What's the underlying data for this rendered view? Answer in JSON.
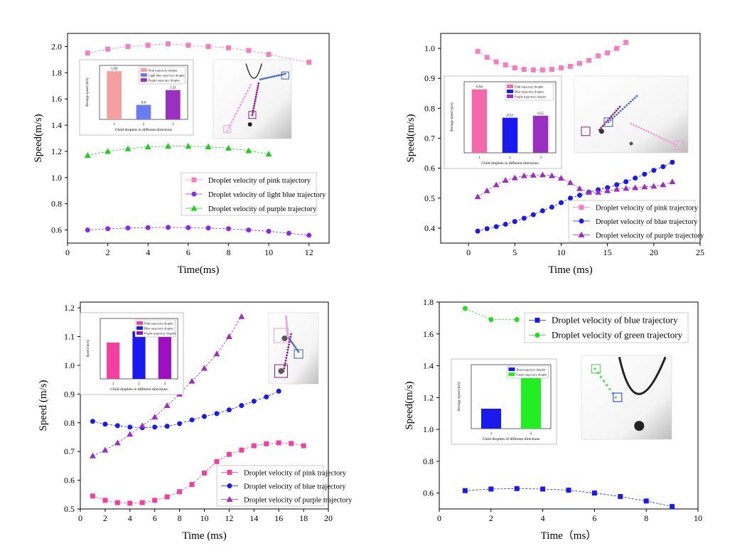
{
  "chart_data": [
    {
      "type": "scatter",
      "xlabel": "Time(ms)",
      "ylabel": "Speed(m/s)",
      "xlim": [
        0,
        13
      ],
      "ylim": [
        0.5,
        2.1
      ],
      "xticks": [
        "0",
        "2",
        "4",
        "6",
        "8",
        "10",
        "12"
      ],
      "yticks": [
        "0.6",
        "0.8",
        "1.0",
        "1.2",
        "1.4",
        "1.6",
        "1.8",
        "2.0"
      ],
      "legend_position": "middle-right",
      "series": [
        {
          "name": "Droplet velocity of pink trajectory",
          "color": "#f080c0",
          "marker": "square",
          "x": [
            1,
            2,
            3,
            4,
            5,
            6,
            7,
            8,
            9,
            10,
            12
          ],
          "y": [
            1.95,
            1.98,
            2.0,
            2.01,
            2.02,
            2.01,
            2.0,
            1.99,
            1.97,
            1.94,
            1.88
          ]
        },
        {
          "name": "Droplet velocity of light blue trajectory",
          "color": "#8a2be2",
          "marker": "circle",
          "x": [
            1,
            2,
            3,
            4,
            5,
            6,
            7,
            8,
            9,
            10,
            11,
            12
          ],
          "y": [
            0.6,
            0.61,
            0.615,
            0.618,
            0.62,
            0.618,
            0.615,
            0.61,
            0.6,
            0.59,
            0.575,
            0.56
          ]
        },
        {
          "name": "Droplet velocity of purple trajectory",
          "color": "#22cc22",
          "marker": "triangle",
          "x": [
            1,
            2,
            3,
            4,
            5,
            6,
            7,
            8,
            9,
            10
          ],
          "y": [
            1.17,
            1.2,
            1.22,
            1.235,
            1.24,
            1.24,
            1.235,
            1.225,
            1.205,
            1.18
          ]
        }
      ],
      "inset": {
        "type": "bar",
        "xlabel": "Child droplets in different directions",
        "ylabel": "Average speed (m/s)",
        "categories": [
          "1",
          "2",
          "3"
        ],
        "values": [
          1.99,
          0.6,
          1.21
        ],
        "value_labels": [
          "1.99",
          "0.6",
          "1.21"
        ],
        "colors": [
          "#f4a0a0",
          "#6a7cf0",
          "#9b30c0"
        ],
        "legend": [
          "Pink trajectory droplet",
          "Light blue trajectory droplet",
          "Purple trajectory droplet"
        ]
      }
    },
    {
      "type": "scatter",
      "xlabel": "Time (ms)",
      "ylabel": "Speed(m/s)",
      "xlim": [
        -3,
        25
      ],
      "ylim": [
        0.35,
        1.05
      ],
      "xticks": [
        "0",
        "5",
        "10",
        "15",
        "20",
        "25"
      ],
      "yticks": [
        "0.4",
        "0.5",
        "0.6",
        "0.7",
        "0.8",
        "0.9",
        "1.0"
      ],
      "legend_position": "bottom-right",
      "series": [
        {
          "name": "Droplet velocity of pink trajectory",
          "color": "#f080c0",
          "marker": "square",
          "x": [
            1,
            2,
            3,
            4,
            5,
            6,
            7,
            8,
            9,
            10,
            11,
            12,
            13,
            14,
            15,
            16,
            17
          ],
          "y": [
            0.99,
            0.97,
            0.955,
            0.945,
            0.935,
            0.93,
            0.928,
            0.928,
            0.93,
            0.935,
            0.94,
            0.95,
            0.96,
            0.975,
            0.985,
            1.0,
            1.02
          ]
        },
        {
          "name": "Droplet velocity of blue trajectory",
          "color": "#1a1aee",
          "marker": "circle",
          "x": [
            1,
            2,
            3,
            4,
            5,
            6,
            7,
            8,
            9,
            10,
            11,
            12,
            13,
            14,
            15,
            16,
            17,
            18,
            19,
            20,
            21,
            22
          ],
          "y": [
            0.39,
            0.398,
            0.405,
            0.413,
            0.422,
            0.433,
            0.445,
            0.458,
            0.47,
            0.485,
            0.5,
            0.51,
            0.52,
            0.528,
            0.535,
            0.545,
            0.555,
            0.567,
            0.58,
            0.593,
            0.605,
            0.62
          ]
        },
        {
          "name": "Droplet velocity of purple trajectory",
          "color": "#9b30c0",
          "marker": "triangle",
          "x": [
            1,
            2,
            3,
            4,
            5,
            6,
            7,
            8,
            9,
            10,
            11,
            12,
            13,
            14,
            15,
            16,
            17,
            18,
            19,
            20,
            21,
            22
          ],
          "y": [
            0.505,
            0.525,
            0.545,
            0.56,
            0.568,
            0.575,
            0.577,
            0.578,
            0.575,
            0.567,
            0.552,
            0.532,
            0.52,
            0.52,
            0.525,
            0.53,
            0.533,
            0.535,
            0.538,
            0.54,
            0.545,
            0.555
          ]
        }
      ],
      "inset": {
        "type": "bar",
        "xlabel": "Child droplets in different directions",
        "ylabel": "Average speed (m/s)",
        "categories": [
          "1",
          "2",
          "3"
        ],
        "values": [
          0.94,
          0.52,
          0.55
        ],
        "value_labels": [
          "0.94",
          "0.52",
          "0.55"
        ],
        "colors": [
          "#f06aaa",
          "#1a1aee",
          "#9b30c0"
        ],
        "legend": [
          "Pink trajectory droplet",
          "Blue trajectory droplet",
          "Purple trajectory droplet"
        ]
      }
    },
    {
      "type": "scatter",
      "xlabel": "Time (ms)",
      "ylabel": "Speed (m/s)",
      "xlim": [
        0,
        20
      ],
      "ylim": [
        0.5,
        1.22
      ],
      "xticks": [
        "0",
        "2",
        "4",
        "6",
        "8",
        "10",
        "12",
        "14",
        "16",
        "18",
        "20"
      ],
      "yticks": [
        "0.5",
        "0.6",
        "0.7",
        "0.8",
        "0.9",
        "1.0",
        "1.1",
        "1.2"
      ],
      "legend_position": "bottom-right",
      "series": [
        {
          "name": "Droplet velocity of pink trajectory",
          "color": "#f040a0",
          "marker": "square",
          "x": [
            1,
            2,
            3,
            4,
            5,
            6,
            7,
            8,
            9,
            10,
            11,
            12,
            13,
            14,
            15,
            16,
            17,
            18
          ],
          "y": [
            0.545,
            0.53,
            0.522,
            0.52,
            0.522,
            0.53,
            0.542,
            0.56,
            0.585,
            0.625,
            0.665,
            0.69,
            0.705,
            0.72,
            0.727,
            0.73,
            0.728,
            0.72
          ]
        },
        {
          "name": "Droplet velocity of blue trajectory",
          "color": "#1a1aee",
          "marker": "circle",
          "x": [
            1,
            2,
            3,
            4,
            5,
            6,
            7,
            8,
            9,
            10,
            11,
            12,
            13,
            14,
            15,
            16
          ],
          "y": [
            0.805,
            0.795,
            0.79,
            0.785,
            0.783,
            0.785,
            0.788,
            0.797,
            0.81,
            0.822,
            0.832,
            0.845,
            0.86,
            0.875,
            0.89,
            0.91
          ]
        },
        {
          "name": "Droplet velocity of purple trajectory",
          "color": "#9b30c0",
          "marker": "triangle",
          "x": [
            1,
            2,
            3,
            4,
            5,
            6,
            7,
            8,
            9,
            10,
            11,
            12,
            13
          ],
          "y": [
            0.685,
            0.705,
            0.73,
            0.76,
            0.79,
            0.82,
            0.86,
            0.9,
            0.945,
            0.99,
            1.04,
            1.1,
            1.17
          ]
        }
      ],
      "inset": {
        "type": "bar",
        "xlabel": "Child droplets in different directions",
        "ylabel": "Speed (m/s)",
        "categories": [
          "1",
          "2",
          "3"
        ],
        "values": [
          0.62,
          0.81,
          0.92
        ],
        "value_labels": [],
        "colors": [
          "#f040a0",
          "#1a1aee",
          "#9b10c0"
        ],
        "legend": [
          "Pink trajectory droplet",
          "Blue trajectory droplet",
          "Purple trajectory droplet"
        ]
      }
    },
    {
      "type": "scatter",
      "xlabel": "Time（ms）",
      "ylabel": "Speed(m/s)",
      "xlim": [
        0,
        10
      ],
      "ylim": [
        0.5,
        1.8
      ],
      "xticks": [
        "0",
        "2",
        "4",
        "6",
        "8",
        "10"
      ],
      "yticks": [
        "0.6",
        "0.8",
        "1.0",
        "1.2",
        "1.4",
        "1.6",
        "1.8"
      ],
      "legend_position": "top-right",
      "series": [
        {
          "name": "Droplet velocity of blue trajectory",
          "color": "#1a1aee",
          "marker": "square",
          "x": [
            1,
            2,
            3,
            4,
            5,
            6,
            7,
            8,
            9
          ],
          "y": [
            0.615,
            0.625,
            0.628,
            0.625,
            0.618,
            0.6,
            0.578,
            0.55,
            0.515
          ]
        },
        {
          "name": "Droplet velocity of green trajectory",
          "color": "#22dd22",
          "marker": "circle",
          "x": [
            1,
            2,
            3
          ],
          "y": [
            1.76,
            1.69,
            1.69
          ]
        }
      ],
      "inset": {
        "type": "bar",
        "xlabel": "Child droplets of different directions",
        "ylabel": "Average speed (m/s)",
        "categories": [
          "1",
          "2"
        ],
        "values": [
          0.6,
          1.72
        ],
        "value_labels": [],
        "colors": [
          "#1a1aee",
          "#22ee22"
        ],
        "legend": [
          "Blue trajectory droplet",
          "Green trajectory droplet"
        ]
      }
    }
  ]
}
